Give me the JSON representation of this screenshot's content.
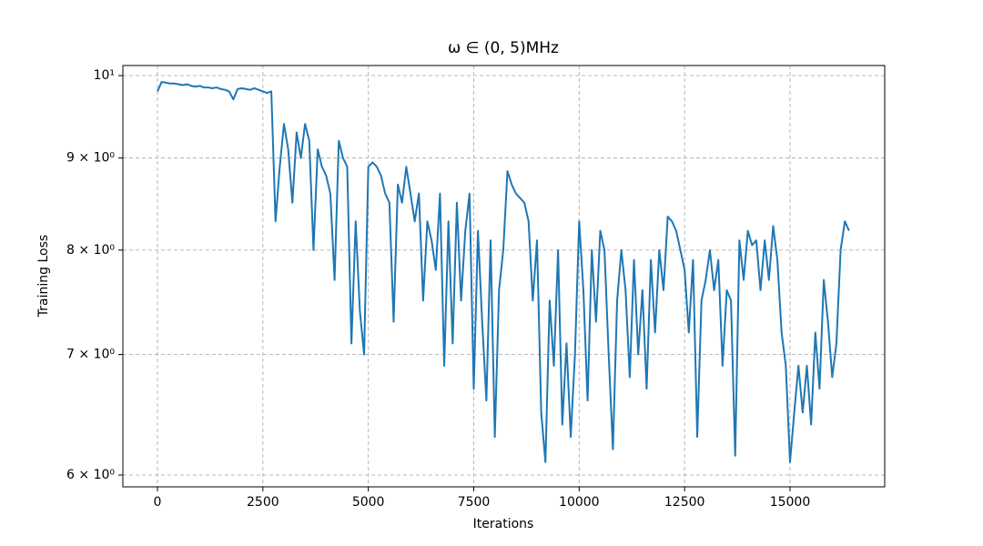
{
  "chart_data": {
    "type": "line",
    "title": "ω ∈ (0, 5)MHz",
    "xlabel": "Iterations",
    "ylabel": "Training Loss",
    "log_y": true,
    "grid": true,
    "color": "#1f77b4",
    "xlim": [
      -820,
      17245
    ],
    "xticks": [
      0,
      2500,
      5000,
      7500,
      10000,
      12500,
      15000
    ],
    "ylim": [
      5.91,
      10.13
    ],
    "yticks": [
      {
        "value": 6,
        "label": "6 × 10⁰"
      },
      {
        "value": 7,
        "label": "7 × 10⁰"
      },
      {
        "value": 8,
        "label": "8 × 10⁰"
      },
      {
        "value": 9,
        "label": "9 × 10⁰"
      },
      {
        "value": 10,
        "label": "10¹"
      }
    ],
    "x": [
      0,
      100,
      200,
      300,
      400,
      500,
      600,
      700,
      800,
      900,
      1000,
      1100,
      1200,
      1300,
      1400,
      1500,
      1600,
      1700,
      1800,
      1900,
      2000,
      2100,
      2200,
      2300,
      2400,
      2500,
      2600,
      2700,
      2800,
      2900,
      3000,
      3100,
      3200,
      3300,
      3400,
      3500,
      3600,
      3700,
      3800,
      3900,
      4000,
      4100,
      4200,
      4300,
      4400,
      4500,
      4600,
      4700,
      4800,
      4900,
      5000,
      5100,
      5200,
      5300,
      5400,
      5500,
      5600,
      5700,
      5800,
      5900,
      6000,
      6100,
      6200,
      6300,
      6400,
      6500,
      6600,
      6700,
      6800,
      6900,
      7000,
      7100,
      7200,
      7300,
      7400,
      7500,
      7600,
      7700,
      7800,
      7900,
      8000,
      8100,
      8200,
      8300,
      8400,
      8500,
      8600,
      8700,
      8800,
      8900,
      9000,
      9100,
      9200,
      9300,
      9400,
      9500,
      9600,
      9700,
      9800,
      9900,
      10000,
      10100,
      10200,
      10300,
      10400,
      10500,
      10600,
      10700,
      10800,
      10900,
      11000,
      11100,
      11200,
      11300,
      11400,
      11500,
      11600,
      11700,
      11800,
      11900,
      12000,
      12100,
      12200,
      12300,
      12400,
      12500,
      12600,
      12700,
      12800,
      12900,
      13000,
      13100,
      13200,
      13300,
      13400,
      13500,
      13600,
      13700,
      13800,
      13900,
      14000,
      14100,
      14200,
      14300,
      14400,
      14500,
      14600,
      14700,
      14800,
      14900,
      15000,
      15100,
      15200,
      15300,
      15400,
      15500,
      15600,
      15700,
      15800,
      15900,
      16000,
      16100,
      16200,
      16300,
      16400
    ],
    "values": [
      9.8,
      9.92,
      9.91,
      9.9,
      9.9,
      9.89,
      9.88,
      9.89,
      9.87,
      9.86,
      9.87,
      9.85,
      9.85,
      9.84,
      9.85,
      9.83,
      9.82,
      9.8,
      9.7,
      9.83,
      9.84,
      9.83,
      9.82,
      9.84,
      9.82,
      9.8,
      9.78,
      9.8,
      8.3,
      8.9,
      9.4,
      9.1,
      8.5,
      9.3,
      9.0,
      9.4,
      9.2,
      8.0,
      9.1,
      8.9,
      8.8,
      8.6,
      7.7,
      9.2,
      9.0,
      8.9,
      7.1,
      8.3,
      7.4,
      7.0,
      8.9,
      8.95,
      8.9,
      8.8,
      8.6,
      8.5,
      7.3,
      8.7,
      8.5,
      8.9,
      8.6,
      8.3,
      8.6,
      7.5,
      8.3,
      8.1,
      7.8,
      8.6,
      6.9,
      8.3,
      7.1,
      8.5,
      7.5,
      8.2,
      8.6,
      6.7,
      8.2,
      7.3,
      6.6,
      8.1,
      6.3,
      7.6,
      8.0,
      8.85,
      8.7,
      8.6,
      8.55,
      8.5,
      8.3,
      7.5,
      8.1,
      6.5,
      6.1,
      7.5,
      6.9,
      8.0,
      6.4,
      7.1,
      6.3,
      7.0,
      8.3,
      7.6,
      6.6,
      8.0,
      7.3,
      8.2,
      8.0,
      7.0,
      6.2,
      7.5,
      8.0,
      7.6,
      6.8,
      7.9,
      7.0,
      7.6,
      6.7,
      7.9,
      7.2,
      8.0,
      7.6,
      8.35,
      8.3,
      8.2,
      8.0,
      7.8,
      7.2,
      7.9,
      6.3,
      7.5,
      7.7,
      8.0,
      7.6,
      7.9,
      6.9,
      7.6,
      7.5,
      6.15,
      8.1,
      7.7,
      8.2,
      8.05,
      8.1,
      7.6,
      8.1,
      7.7,
      8.25,
      7.9,
      7.2,
      6.9,
      6.1,
      6.5,
      6.9,
      6.5,
      6.9,
      6.4,
      7.2,
      6.7,
      7.7,
      7.3,
      6.8,
      7.1,
      8.0,
      8.3,
      8.2
    ]
  }
}
